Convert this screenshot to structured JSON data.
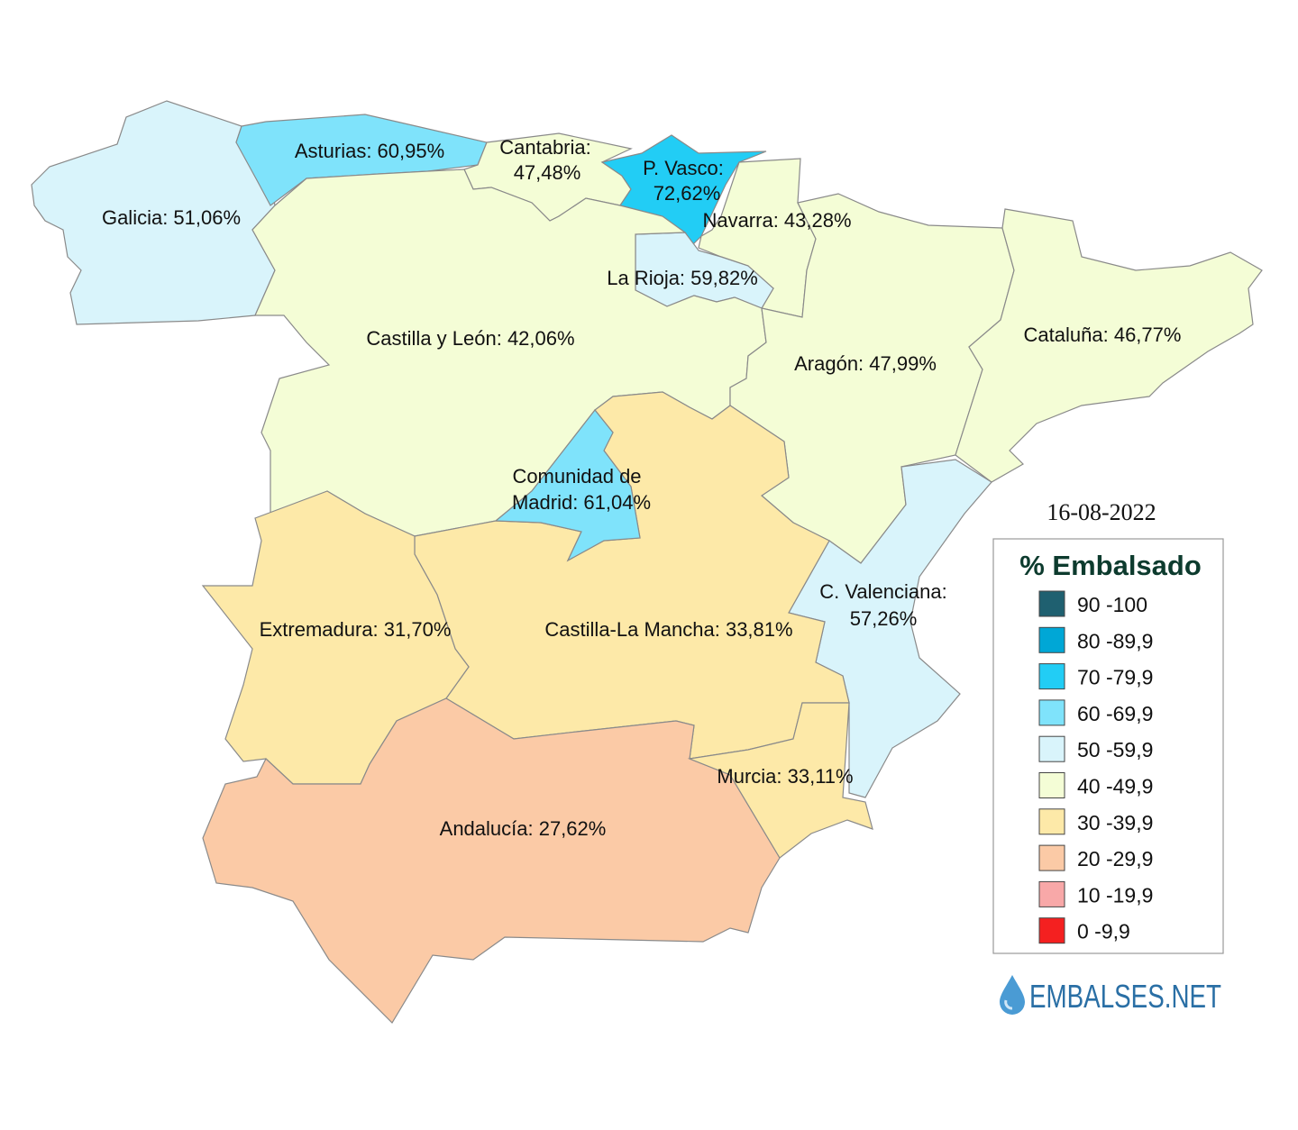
{
  "date": "16-08-2022",
  "regions": [
    {
      "lines": [
        "Galicia: 51,06%"
      ],
      "color": "#d9f4fb"
    },
    {
      "lines": [
        "Asturias: 60,95%"
      ],
      "color": "#7fe3fb"
    },
    {
      "lines": [
        "Cantabria:",
        "47,48%"
      ],
      "color": "#f4fdd6"
    },
    {
      "lines": [
        "P. Vasco:",
        "72,62%"
      ],
      "color": "#22cdf5"
    },
    {
      "lines": [
        "Navarra: 43,28%"
      ],
      "color": "#f4fdd6"
    },
    {
      "lines": [
        "La Rioja: 59,82%"
      ],
      "color": "#d9f4fb"
    },
    {
      "lines": [
        "Castilla y León: 42,06%"
      ],
      "color": "#f4fdd6"
    },
    {
      "lines": [
        "Comunidad de",
        "Madrid: 61,04%"
      ],
      "color": "#7fe3fb"
    },
    {
      "lines": [
        "Aragón: 47,99%"
      ],
      "color": "#f4fdd6"
    },
    {
      "lines": [
        "Cataluña: 46,77%"
      ],
      "color": "#f4fdd6"
    },
    {
      "lines": [
        "C. Valenciana:",
        "57,26%"
      ],
      "color": "#d9f4fb"
    },
    {
      "lines": [
        "Extremadura: 31,70%"
      ],
      "color": "#fde9a8"
    },
    {
      "lines": [
        "Castilla-La Mancha: 33,81%"
      ],
      "color": "#fde9a8"
    },
    {
      "lines": [
        "Murcia: 33,11%"
      ],
      "color": "#fde9a8"
    },
    {
      "lines": [
        "Andalucía: 27,62%"
      ],
      "color": "#fbcaa6"
    }
  ],
  "legend": {
    "title": "% Embalsado",
    "items": [
      {
        "label": "90 -100",
        "color": "#1f6070"
      },
      {
        "label": "80 -89,9",
        "color": "#00a7d6"
      },
      {
        "label": "70 -79,9",
        "color": "#22cdf5"
      },
      {
        "label": "60 -69,9",
        "color": "#7fe3fb"
      },
      {
        "label": "50 -59,9",
        "color": "#d9f4fb"
      },
      {
        "label": "40 -49,9",
        "color": "#f4fdd6"
      },
      {
        "label": "30 -39,9",
        "color": "#fde9a8"
      },
      {
        "label": "20 -29,9",
        "color": "#fbcaa6"
      },
      {
        "label": "10 -19,9",
        "color": "#f8a8a8"
      },
      {
        "label": "0 -9,9",
        "color": "#f42020"
      }
    ]
  },
  "logo": "EMBALSES.NET"
}
